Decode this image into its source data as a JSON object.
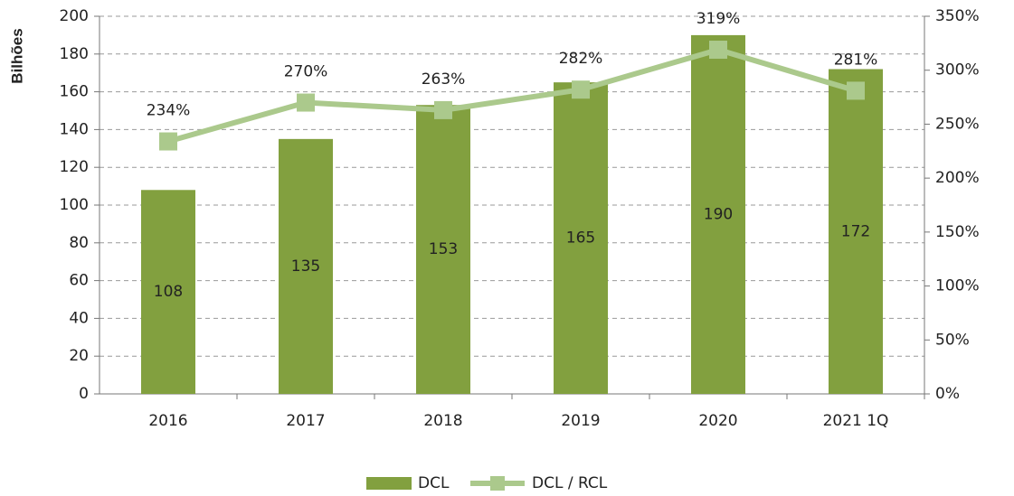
{
  "chart_data": {
    "type": "bar",
    "ylabel": "Bilhões",
    "categories": [
      "2016",
      "2017",
      "2018",
      "2019",
      "2020",
      "2021 1Q"
    ],
    "series": [
      {
        "name": "DCL",
        "type": "bar",
        "color": "#82a03f",
        "values": [
          108,
          135,
          153,
          165,
          190,
          172
        ]
      },
      {
        "name": "DCL / RCL",
        "type": "line",
        "axis": "y2",
        "color": "#abc98c",
        "values": [
          234,
          270,
          263,
          282,
          319,
          281
        ],
        "value_labels": [
          "234%",
          "270%",
          "263%",
          "282%",
          "319%",
          "281%"
        ]
      }
    ],
    "ylim": [
      0,
      200
    ],
    "yticks": [
      0,
      20,
      40,
      60,
      80,
      100,
      120,
      140,
      160,
      180,
      200
    ],
    "y2lim": [
      0,
      350
    ],
    "y2ticks": [
      {
        "value": 0,
        "label": "0%"
      },
      {
        "value": 50,
        "label": "50%"
      },
      {
        "value": 100,
        "label": "100%"
      },
      {
        "value": 150,
        "label": "150%"
      },
      {
        "value": 200,
        "label": "200%"
      },
      {
        "value": 250,
        "label": "250%"
      },
      {
        "value": 300,
        "label": "300%"
      },
      {
        "value": 350,
        "label": "350%"
      }
    ],
    "grid": true,
    "legend": "bottom"
  }
}
